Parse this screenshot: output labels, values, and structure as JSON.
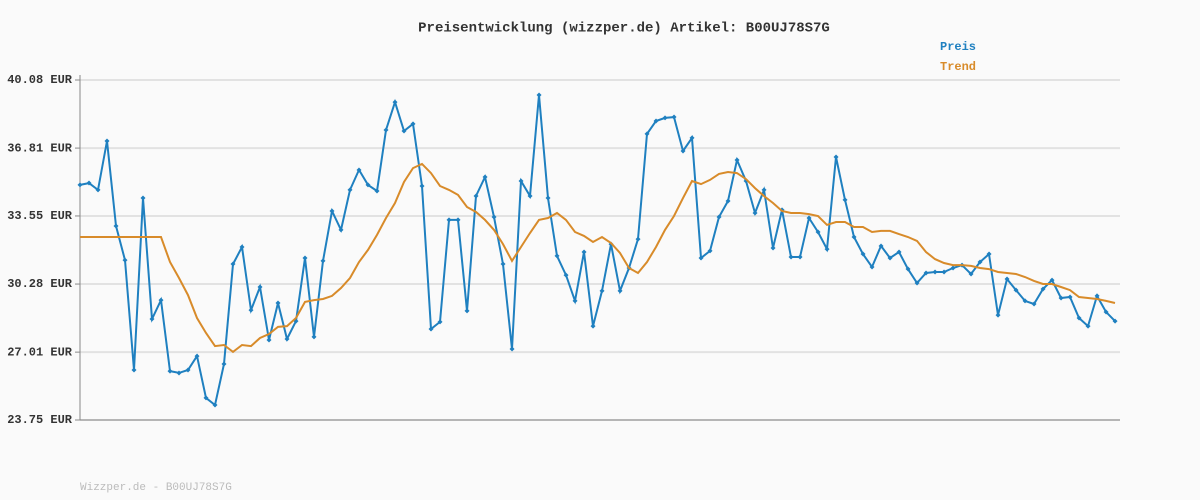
{
  "chart_data": {
    "type": "line",
    "title": "Preisentwicklung (wizzper.de) Artikel: B00UJ78S7G",
    "footer": "Wizzper.de - B00UJ78S7G",
    "ylim": [
      23.75,
      40.08
    ],
    "yticks": [
      {
        "value": 23.75,
        "label": "23.75 EUR"
      },
      {
        "value": 27.01,
        "label": "27.01 EUR"
      },
      {
        "value": 30.28,
        "label": "30.28 EUR"
      },
      {
        "value": 33.55,
        "label": "33.55 EUR"
      },
      {
        "value": 36.81,
        "label": "36.81 EUR"
      },
      {
        "value": 40.08,
        "label": "40.08 EUR"
      }
    ],
    "grid": true,
    "legend": "top-right",
    "series": [
      {
        "name": "Preis",
        "color": "#1f80c0",
        "markers": true,
        "values": [
          35.04,
          35.13,
          34.8,
          37.15,
          33.07,
          31.43,
          26.15,
          34.41,
          28.6,
          29.51,
          26.1,
          26.01,
          26.15,
          26.82,
          24.81,
          24.47,
          26.44,
          31.24,
          32.06,
          29.03,
          30.14,
          27.59,
          29.37,
          27.64,
          28.5,
          31.53,
          27.74,
          31.39,
          33.79,
          32.88,
          34.8,
          35.76,
          35.04,
          34.75,
          37.68,
          39.02,
          37.63,
          37.97,
          34.99,
          28.12,
          28.46,
          33.36,
          33.36,
          28.99,
          34.51,
          35.42,
          33.5,
          31.24,
          27.16,
          35.23,
          34.51,
          39.36,
          34.41,
          31.63,
          30.71,
          29.47,
          31.82,
          28.26,
          29.95,
          32.2,
          29.95,
          31.05,
          32.44,
          37.49,
          38.11,
          38.26,
          38.3,
          36.67,
          37.3,
          31.53,
          31.87,
          33.5,
          34.27,
          36.24,
          35.23,
          33.69,
          34.8,
          32.01,
          33.84,
          31.58,
          31.58,
          33.45,
          32.78,
          31.96,
          36.38,
          34.32,
          32.54,
          31.72,
          31.1,
          32.11,
          31.53,
          31.82,
          31.0,
          30.33,
          30.81,
          30.86,
          30.86,
          31.05,
          31.19,
          30.76,
          31.34,
          31.72,
          28.79,
          30.52,
          29.99,
          29.47,
          29.32,
          30.04,
          30.47,
          29.61,
          29.66,
          28.65,
          28.26,
          29.71,
          28.94,
          28.5
        ]
      },
      {
        "name": "Trend",
        "color": "#d88b2a",
        "markers": false,
        "values": [
          32.54,
          32.54,
          32.54,
          32.54,
          32.54,
          32.54,
          32.54,
          32.54,
          32.54,
          32.54,
          31.34,
          30.57,
          29.75,
          28.65,
          27.93,
          27.3,
          27.35,
          27.02,
          27.35,
          27.3,
          27.69,
          27.88,
          28.22,
          28.26,
          28.65,
          29.42,
          29.51,
          29.56,
          29.71,
          30.09,
          30.57,
          31.34,
          31.92,
          32.64,
          33.45,
          34.17,
          35.18,
          35.85,
          36.05,
          35.61,
          34.99,
          34.8,
          34.56,
          33.98,
          33.74,
          33.36,
          32.88,
          32.2,
          31.39,
          32.06,
          32.73,
          33.36,
          33.45,
          33.69,
          33.36,
          32.78,
          32.59,
          32.3,
          32.54,
          32.25,
          31.77,
          31.05,
          30.81,
          31.34,
          32.06,
          32.88,
          33.55,
          34.41,
          35.23,
          35.08,
          35.28,
          35.57,
          35.66,
          35.61,
          35.32,
          34.89,
          34.51,
          34.17,
          33.79,
          33.69,
          33.69,
          33.64,
          33.55,
          33.12,
          33.26,
          33.26,
          33.02,
          33.02,
          32.78,
          32.83,
          32.83,
          32.68,
          32.54,
          32.35,
          31.82,
          31.48,
          31.29,
          31.19,
          31.19,
          31.15,
          31.05,
          31.0,
          30.86,
          30.81,
          30.76,
          30.62,
          30.43,
          30.28,
          30.28,
          30.14,
          29.99,
          29.66,
          29.61,
          29.56,
          29.47,
          29.37
        ]
      }
    ]
  }
}
